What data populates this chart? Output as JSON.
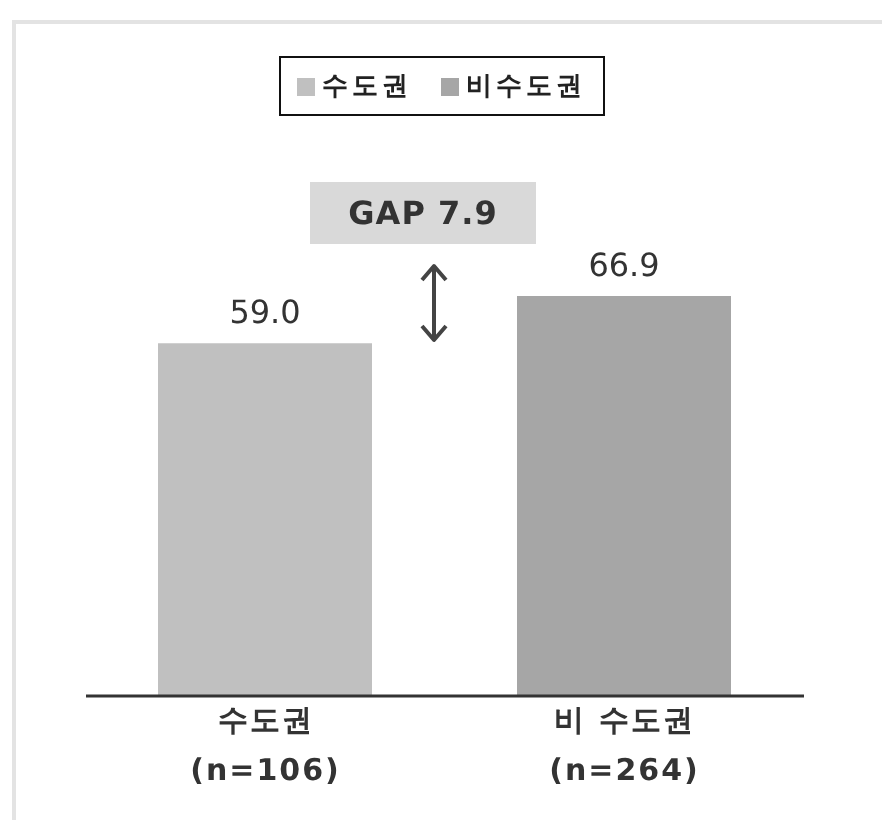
{
  "chart_data": {
    "type": "bar",
    "categories": [
      "수도권\n(n=106)",
      "비 수도권\n(n=264)"
    ],
    "series": [
      {
        "name": "수도권",
        "color": "#c0c0c0",
        "values": [
          59.0,
          null
        ],
        "value_labels": [
          "59.0",
          null
        ]
      },
      {
        "name": "비수도권",
        "color": "#a6a6a6",
        "values": [
          null,
          66.9
        ],
        "value_labels": [
          null,
          "66.9"
        ]
      }
    ],
    "annotations": [
      "GAP 7.9"
    ],
    "legend": "top",
    "grid": false
  }
}
